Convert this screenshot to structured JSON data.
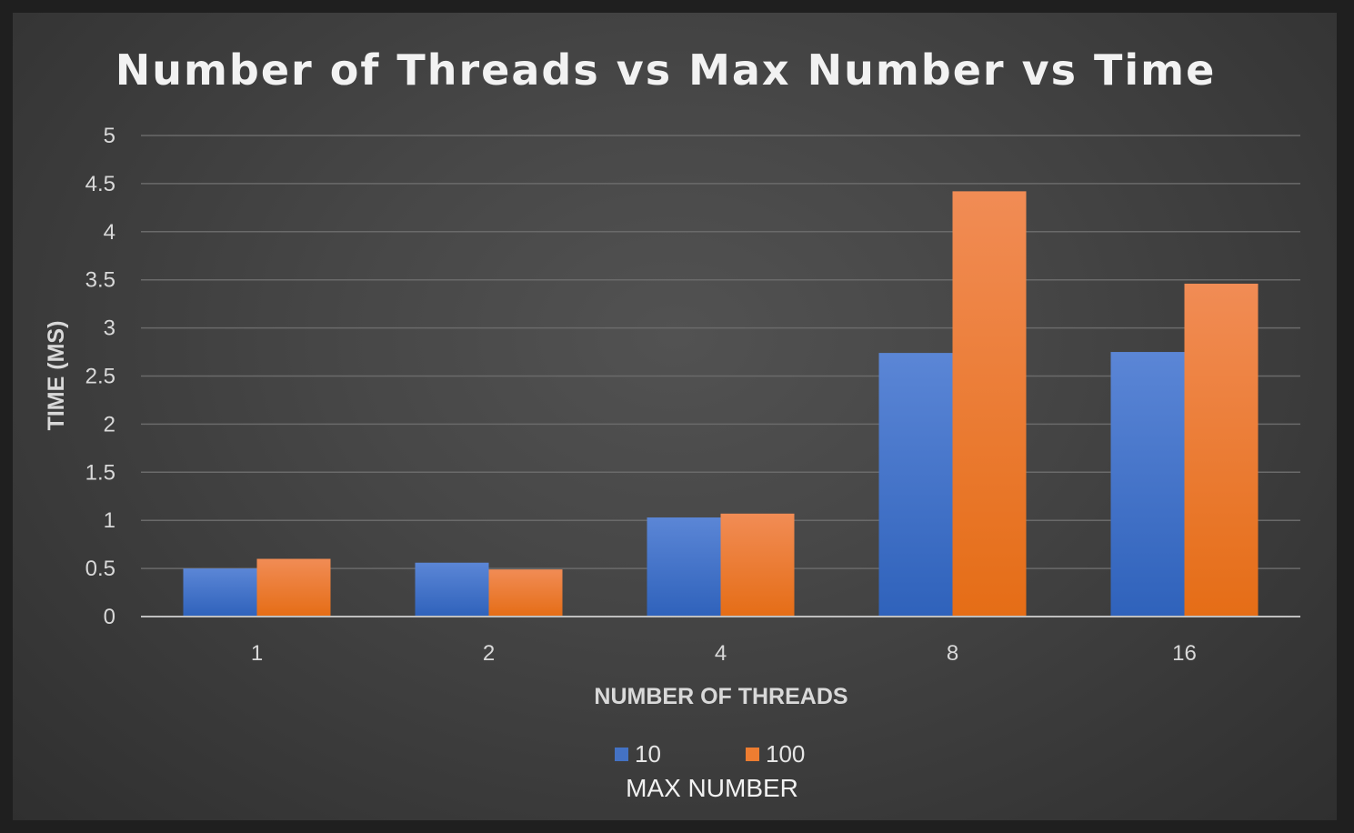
{
  "chart_data": {
    "type": "bar",
    "title": "Number of Threads vs Max Number vs Time",
    "xlabel": "NUMBER OF THREADS",
    "ylabel": "TIME (MS)",
    "categories": [
      "1",
      "2",
      "4",
      "8",
      "16"
    ],
    "ylim": [
      0,
      5
    ],
    "yticks": [
      "0",
      "0.5",
      "1",
      "1.5",
      "2",
      "2.5",
      "3",
      "3.5",
      "4",
      "4.5",
      "5"
    ],
    "grid": true,
    "legend_title": "MAX NUMBER",
    "legend_position": "bottom",
    "series": [
      {
        "name": "10",
        "color": "#4472c4",
        "values": [
          0.5,
          0.56,
          1.03,
          2.74,
          2.75
        ]
      },
      {
        "name": "100",
        "color": "#ed7d31",
        "values": [
          0.6,
          0.49,
          1.07,
          4.42,
          3.46
        ]
      }
    ]
  }
}
